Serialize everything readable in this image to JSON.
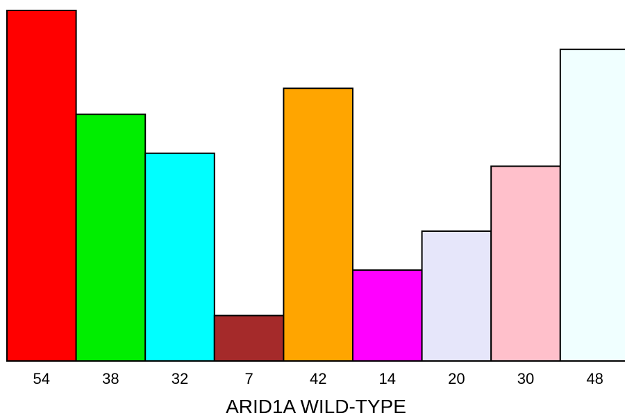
{
  "chart_data": {
    "type": "bar",
    "categories": [
      "54",
      "38",
      "32",
      "7",
      "42",
      "14",
      "20",
      "30",
      "48"
    ],
    "values": [
      54,
      38,
      32,
      7,
      42,
      14,
      20,
      30,
      48
    ],
    "colors": [
      "#ff0000",
      "#00ee00",
      "#00ffff",
      "#a52a2a",
      "#ffa500",
      "#ff00ff",
      "#e6e6fa",
      "#ffc0cb",
      "#f0ffff"
    ],
    "xlabel": "ARID1A WILD-TYPE",
    "ylabel": "",
    "ylim": [
      0,
      54
    ],
    "grid": false,
    "legend": "none"
  }
}
